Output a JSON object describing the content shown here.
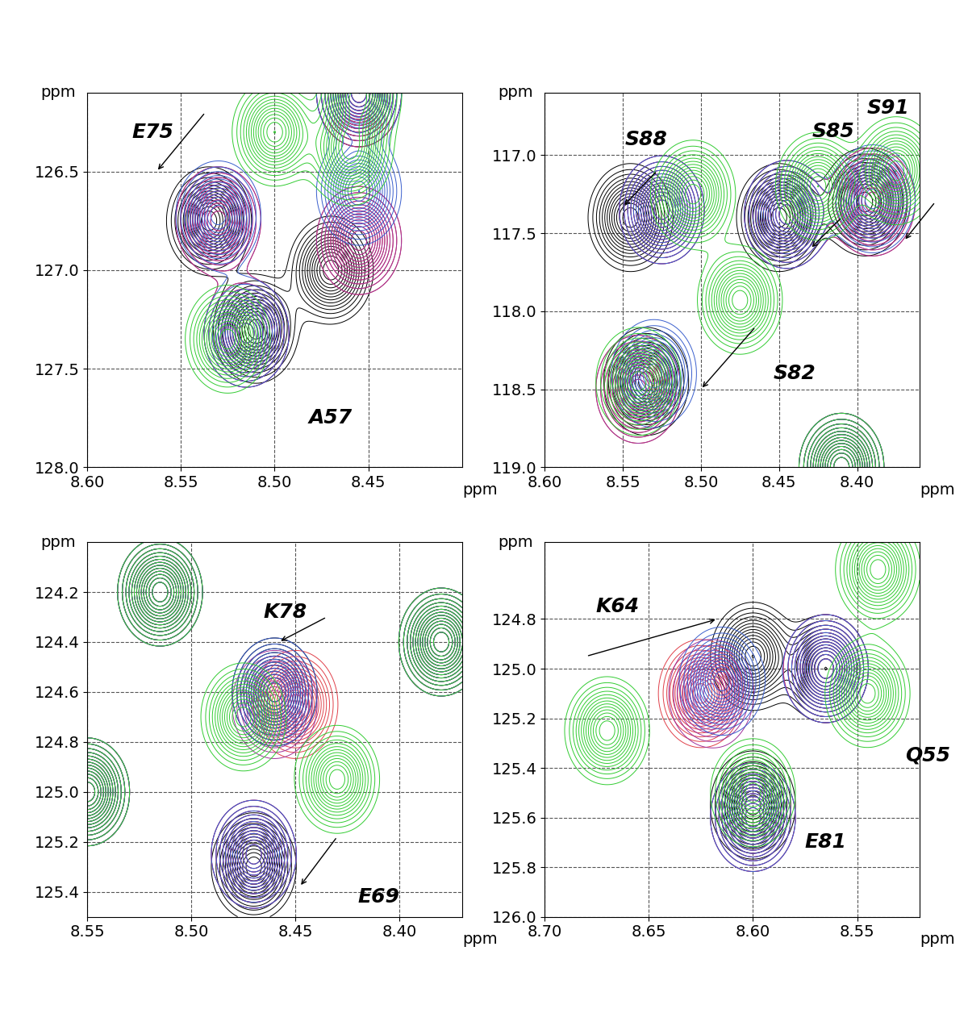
{
  "chart_data": [
    {
      "type": "contour",
      "xlabel": "ppm",
      "ylabel": "ppm",
      "grid": true,
      "xlim": [
        8.6,
        8.4
      ],
      "ylim": [
        128.0,
        126.1
      ],
      "xticks": [
        {
          "value": 8.6,
          "label": "8.60"
        },
        8.55,
        {
          "value": 8.5,
          "label": "8.50"
        },
        8.45
      ],
      "yticks": [
        126.5,
        127.0,
        127.5,
        128.0
      ],
      "series": [
        {
          "color": "#000000",
          "peaks": [
            [
              8.535,
              126.75
            ],
            [
              8.51,
              127.3
            ],
            [
              8.455,
              126.1
            ],
            [
              8.47,
              127.0
            ]
          ]
        },
        {
          "color": "#e0404a",
          "peaks": [
            [
              8.53,
              126.75
            ],
            [
              8.515,
              127.32
            ],
            [
              8.455,
              126.1
            ],
            [
              8.455,
              126.85
            ]
          ]
        },
        {
          "color": "#a0309a",
          "peaks": [
            [
              8.53,
              126.75
            ],
            [
              8.515,
              127.32
            ],
            [
              8.455,
              126.1
            ],
            [
              8.455,
              126.85
            ]
          ]
        },
        {
          "color": "#3a5fcd",
          "peaks": [
            [
              8.53,
              126.72
            ],
            [
              8.515,
              127.32
            ],
            [
              8.455,
              126.1
            ],
            [
              8.455,
              126.6
            ]
          ]
        },
        {
          "color": "#33cc33",
          "peaks": [
            [
              8.5,
              126.3
            ],
            [
              8.525,
              127.35
            ],
            [
              8.455,
              126.1
            ],
            [
              8.46,
              126.4
            ]
          ]
        }
      ],
      "annotations": [
        {
          "text": "E75",
          "x": 8.565,
          "y": 126.3,
          "arrow": [
            [
              8.537,
              126.2
            ],
            [
              8.563,
              126.5
            ]
          ]
        },
        {
          "text": "A57",
          "x": 8.47,
          "y": 127.75,
          "arrow": null
        }
      ]
    },
    {
      "type": "contour",
      "xlabel": "ppm",
      "ylabel": "ppm",
      "grid": true,
      "xlim": [
        8.6,
        8.36
      ],
      "ylim": [
        119.0,
        116.6
      ],
      "xticks": [
        {
          "value": 8.6,
          "label": "8.60"
        },
        8.55,
        {
          "value": 8.5,
          "label": "8.50"
        },
        8.45,
        {
          "value": 8.4,
          "label": "8.40"
        }
      ],
      "yticks": [
        117.0,
        117.5,
        118.0,
        118.5,
        119.0
      ],
      "series": [
        {
          "color": "#000000",
          "peaks": [
            [
              8.545,
              117.4
            ],
            [
              8.45,
              117.4
            ],
            [
              8.395,
              117.3
            ],
            [
              8.535,
              118.45
            ],
            [
              8.41,
              119.0
            ]
          ]
        },
        {
          "color": "#e0404a",
          "peaks": [
            [
              8.525,
              117.35
            ],
            [
              8.445,
              117.38
            ],
            [
              8.39,
              117.3
            ],
            [
              8.54,
              118.5
            ],
            [
              8.41,
              119.0
            ]
          ]
        },
        {
          "color": "#a0309a",
          "peaks": [
            [
              8.525,
              117.35
            ],
            [
              8.445,
              117.38
            ],
            [
              8.39,
              117.3
            ],
            [
              8.54,
              118.5
            ],
            [
              8.41,
              119.0
            ]
          ]
        },
        {
          "color": "#3a5fcd",
          "peaks": [
            [
              8.525,
              117.35
            ],
            [
              8.445,
              117.38
            ],
            [
              8.39,
              117.28
            ],
            [
              8.53,
              118.4
            ],
            [
              8.41,
              119.0
            ]
          ]
        },
        {
          "color": "#33cc33",
          "peaks": [
            [
              8.505,
              117.25
            ],
            [
              8.425,
              117.2
            ],
            [
              8.375,
              117.1
            ],
            [
              8.475,
              117.93
            ],
            [
              8.54,
              118.45
            ],
            [
              8.41,
              119.0
            ]
          ]
        }
      ],
      "annotations": [
        {
          "text": "S88",
          "x": 8.535,
          "y": 116.9,
          "arrow": [
            [
              8.528,
              117.1
            ],
            [
              8.55,
              117.33
            ]
          ]
        },
        {
          "text": "S85",
          "x": 8.415,
          "y": 116.85,
          "arrow": [
            [
              8.41,
              117.4
            ],
            [
              8.43,
              117.6
            ]
          ]
        },
        {
          "text": "S91",
          "x": 8.38,
          "y": 116.7,
          "arrow": [
            [
              8.35,
              117.3
            ],
            [
              8.37,
              117.55
            ]
          ]
        },
        {
          "text": "S82",
          "x": 8.44,
          "y": 118.4,
          "arrow": [
            [
              8.465,
              118.1
            ],
            [
              8.5,
              118.5
            ]
          ]
        }
      ]
    },
    {
      "type": "contour",
      "xlabel": "ppm",
      "ylabel": "ppm",
      "grid": true,
      "xlim": [
        8.55,
        8.37
      ],
      "ylim": [
        125.5,
        124.0
      ],
      "xticks": [
        8.55,
        {
          "value": 8.5,
          "label": "8.50"
        },
        8.45,
        {
          "value": 8.4,
          "label": "8.40"
        }
      ],
      "yticks": [
        124.2,
        124.4,
        124.6,
        124.8,
        125.0,
        125.2,
        125.4
      ],
      "series": [
        {
          "color": "#000000",
          "peaks": [
            [
              8.46,
              124.6
            ],
            [
              8.47,
              125.3
            ],
            [
              8.515,
              124.2
            ],
            [
              8.55,
              125.0
            ],
            [
              8.38,
              124.4
            ]
          ]
        },
        {
          "color": "#e0404a",
          "peaks": [
            [
              8.45,
              124.65
            ],
            [
              8.47,
              125.25
            ],
            [
              8.515,
              124.2
            ],
            [
              8.55,
              125.0
            ],
            [
              8.38,
              124.4
            ]
          ]
        },
        {
          "color": "#a0309a",
          "peaks": [
            [
              8.46,
              124.65
            ],
            [
              8.47,
              125.25
            ],
            [
              8.515,
              124.2
            ],
            [
              8.55,
              125.0
            ],
            [
              8.38,
              124.4
            ]
          ]
        },
        {
          "color": "#3a5fcd",
          "peaks": [
            [
              8.46,
              124.6
            ],
            [
              8.47,
              125.25
            ],
            [
              8.515,
              124.2
            ],
            [
              8.55,
              125.0
            ],
            [
              8.38,
              124.4
            ]
          ]
        },
        {
          "color": "#33cc33",
          "peaks": [
            [
              8.43,
              124.95
            ],
            [
              8.475,
              124.7
            ],
            [
              8.515,
              124.2
            ],
            [
              8.55,
              125.0
            ],
            [
              8.38,
              124.4
            ]
          ]
        }
      ],
      "annotations": [
        {
          "text": "K78",
          "x": 8.455,
          "y": 124.28,
          "arrow": [
            [
              8.435,
              124.3
            ],
            [
              8.458,
              124.4
            ]
          ]
        },
        {
          "text": "E69",
          "x": 8.41,
          "y": 125.42,
          "arrow": [
            [
              8.43,
              125.18
            ],
            [
              8.448,
              125.38
            ]
          ]
        }
      ]
    },
    {
      "type": "contour",
      "xlabel": "ppm",
      "ylabel": "ppm",
      "grid": true,
      "xlim": [
        8.7,
        8.52
      ],
      "ylim": [
        126.0,
        124.49
      ],
      "xticks": [
        {
          "value": 8.7,
          "label": "8.70"
        },
        8.65,
        {
          "value": 8.6,
          "label": "8.60"
        },
        8.55
      ],
      "yticks": [
        124.8,
        125.0,
        125.2,
        125.4,
        125.6,
        125.8,
        126.0
      ],
      "series": [
        {
          "color": "#000000",
          "peaks": [
            [
              8.6,
              124.95
            ],
            [
              8.565,
              125.0
            ],
            [
              8.6,
              125.55
            ]
          ]
        },
        {
          "color": "#e0404a",
          "peaks": [
            [
              8.625,
              125.1
            ],
            [
              8.565,
              125.0
            ],
            [
              8.6,
              125.6
            ]
          ]
        },
        {
          "color": "#a0309a",
          "peaks": [
            [
              8.62,
              125.1
            ],
            [
              8.565,
              125.0
            ],
            [
              8.6,
              125.6
            ]
          ]
        },
        {
          "color": "#3a5fcd",
          "peaks": [
            [
              8.615,
              125.05
            ],
            [
              8.565,
              125.0
            ],
            [
              8.6,
              125.6
            ]
          ]
        },
        {
          "color": "#33cc33",
          "peaks": [
            [
              8.67,
              125.25
            ],
            [
              8.545,
              125.1
            ],
            [
              8.6,
              125.5
            ],
            [
              8.54,
              124.6
            ]
          ]
        }
      ],
      "annotations": [
        {
          "text": "K64",
          "x": 8.665,
          "y": 124.75,
          "arrow": [
            [
              8.68,
              124.95
            ],
            [
              8.617,
              124.8
            ]
          ]
        },
        {
          "text": "Q55",
          "x": 8.516,
          "y": 125.35,
          "arrow": null
        },
        {
          "text": "E81",
          "x": 8.565,
          "y": 125.7,
          "arrow": null
        }
      ]
    }
  ]
}
